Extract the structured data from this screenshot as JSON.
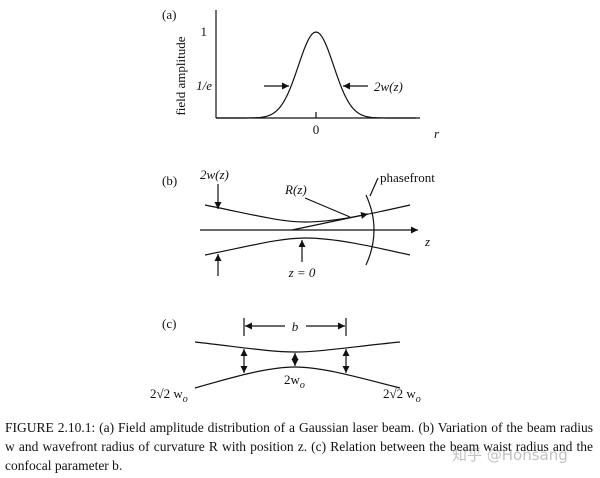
{
  "panels": [
    {
      "label": "(a)",
      "y_axis_label": "field amplitude",
      "ticks": [
        "1",
        "1/e"
      ],
      "x_tick": "0",
      "x_axis_label": "r",
      "width_label": "2w(z)"
    },
    {
      "label": "(b)",
      "width_label": "2w(z)",
      "radius_label": "R(z)",
      "phasefront_label": "phasefront",
      "axis_label": "z",
      "waist_label": "z = 0"
    },
    {
      "label": "(c)",
      "confocal_label": "b",
      "left_label": {
        "main": "2√2 w",
        "sub": "o"
      },
      "center_label": {
        "main": "2w",
        "sub": "o"
      },
      "right_label": {
        "main": "2√2 w",
        "sub": "o"
      }
    }
  ],
  "caption": "FIGURE 2.10.1: (a) Field amplitude distribution of a Gaussian laser beam. (b) Variation of the beam radius w and wavefront radius of curvature R with position z. (c) Relation between the beam waist radius and the confocal parameter b.",
  "watermark": "知乎 @Honsang"
}
